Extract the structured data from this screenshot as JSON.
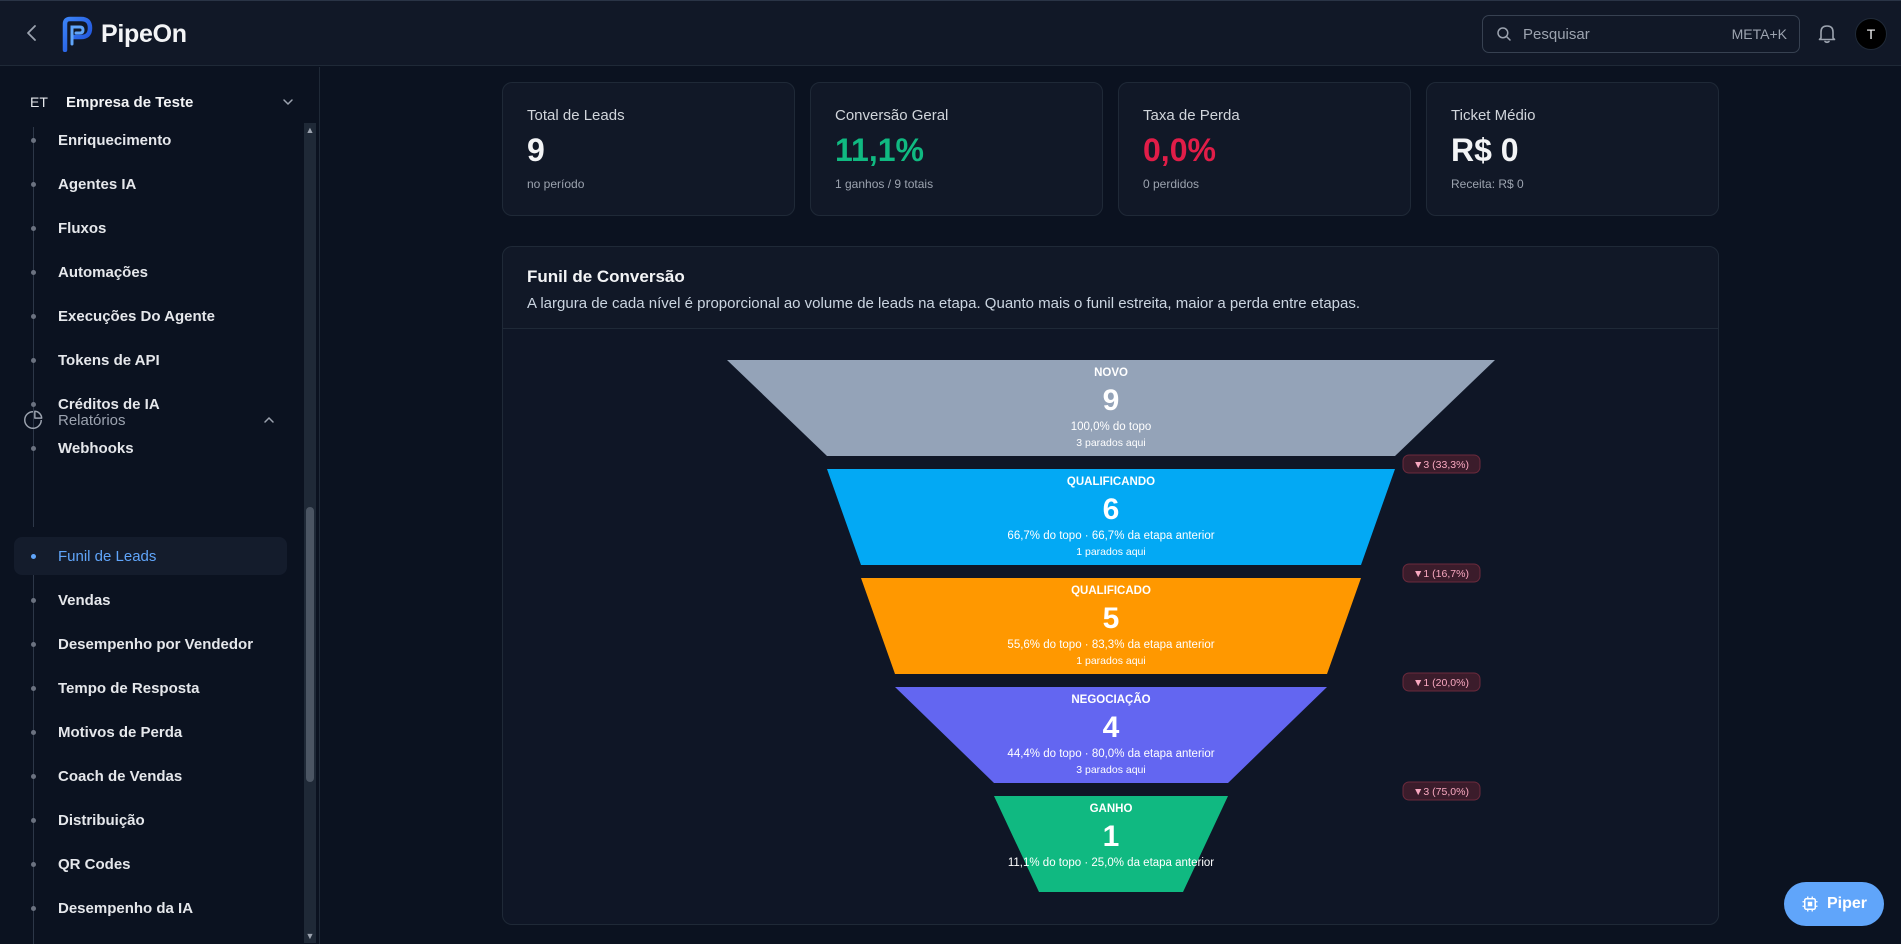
{
  "header": {
    "app_name": "PipeOn",
    "search_placeholder": "Pesquisar",
    "search_shortcut": "META+K",
    "avatar_initial": "T"
  },
  "sidebar": {
    "company_abbr": "ET",
    "company_name": "Empresa de Teste",
    "items": [
      {
        "label": "Enriquecimento"
      },
      {
        "label": "Agentes IA"
      },
      {
        "label": "Fluxos"
      },
      {
        "label": "Automações"
      },
      {
        "label": "Execuções Do Agente"
      },
      {
        "label": "Tokens de API"
      },
      {
        "label": "Créditos de IA"
      },
      {
        "label": "Webhooks"
      }
    ],
    "section_label": "Relatórios",
    "report_items": [
      {
        "label": "Funil de Leads"
      },
      {
        "label": "Vendas"
      },
      {
        "label": "Desempenho por Vendedor"
      },
      {
        "label": "Tempo de Resposta"
      },
      {
        "label": "Motivos de Perda"
      },
      {
        "label": "Coach de Vendas"
      },
      {
        "label": "Distribuição"
      },
      {
        "label": "QR Codes"
      },
      {
        "label": "Desempenho da IA"
      }
    ]
  },
  "cards": [
    {
      "title": "Total de Leads",
      "value": "9",
      "sub": "no período"
    },
    {
      "title": "Conversão Geral",
      "value": "11,1%",
      "sub": "1 ganhos / 9 totais"
    },
    {
      "title": "Taxa de Perda",
      "value": "0,0%",
      "sub": "0 perdidos"
    },
    {
      "title": "Ticket Médio",
      "value": "R$ 0",
      "sub": "Receita: R$ 0"
    }
  ],
  "funnel": {
    "title": "Funil de Conversão",
    "description": "A largura de cada nível é proporcional ao volume de leads na etapa. Quanto mais o funil estreita, maior a perda entre etapas.",
    "stages": [
      {
        "name": "NOVO",
        "count": "9",
        "pct_text": "100,0% do topo",
        "stopped": "3 parados aqui",
        "color": "#94a3b8"
      },
      {
        "name": "QUALIFICANDO",
        "count": "6",
        "pct_text": "66,7% do topo · 66,7% da etapa anterior",
        "stopped": "1 parados aqui",
        "color": "#03a9f4"
      },
      {
        "name": "QUALIFICADO",
        "count": "5",
        "pct_text": "55,6% do topo · 83,3% da etapa anterior",
        "stopped": "1 parados aqui",
        "color": "#ff9800"
      },
      {
        "name": "NEGOCIAÇÃO",
        "count": "4",
        "pct_text": "44,4% do topo · 80,0% da etapa anterior",
        "stopped": "3 parados aqui",
        "color": "#6366f1"
      },
      {
        "name": "GANHO",
        "count": "1",
        "pct_text": "11,1% do topo · 25,0% da etapa anterior",
        "stopped": "",
        "color": "#10b981"
      }
    ],
    "drops": [
      "▼3 (33,3%)",
      "▼1 (16,7%)",
      "▼1 (20,0%)",
      "▼3 (75,0%)"
    ]
  },
  "piper_label": "Piper"
}
